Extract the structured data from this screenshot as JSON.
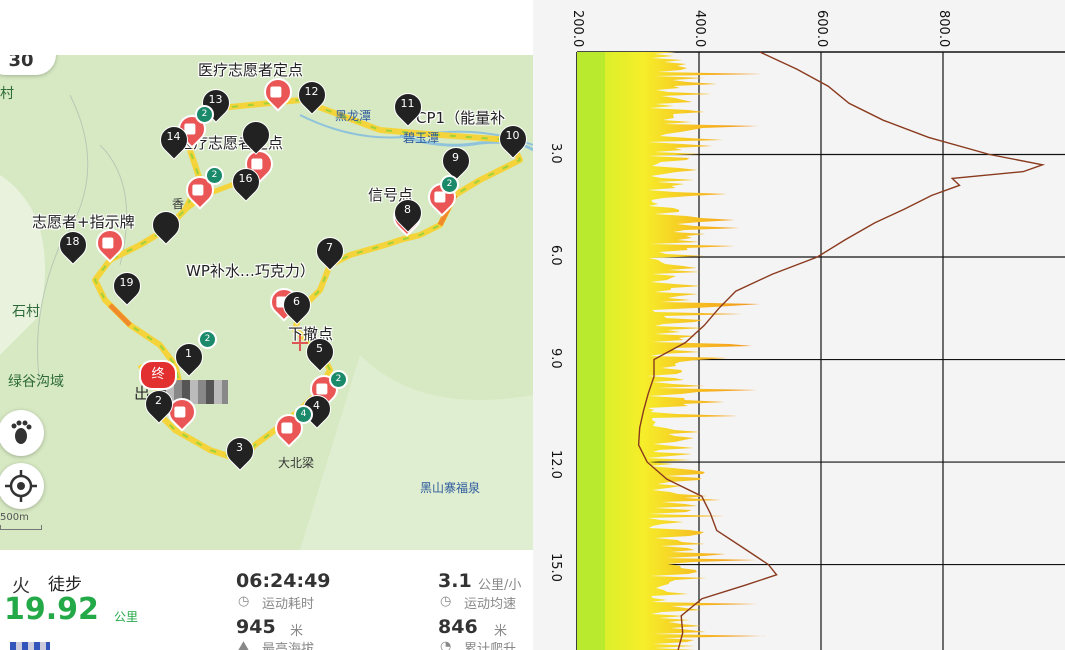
{
  "map": {
    "labels": {
      "medical_point_top": "医疗志愿者定点",
      "medical_point_mid": "医疗志愿者定点",
      "cp1": "CP1（能量补",
      "signal": "信号点",
      "volunteer_sign": "志愿者+指示牌",
      "wp_supply": "WP补水…巧克力）",
      "retreat": "下撤点"
    },
    "poi": {
      "pool": "黑龙潭",
      "jade_pool": "碧玉潭",
      "village_shi": "石村",
      "village_cun": "村",
      "green_valley": "绿谷沟域",
      "dabeiliang": "大北梁",
      "temple": "黑山寨福泉",
      "xiang": "香",
      "chu": "出"
    },
    "markers": [
      "13",
      "12",
      "11",
      "10",
      "9",
      "8",
      "7",
      "6",
      "5",
      "4",
      "3",
      "2",
      "1",
      "16",
      "18",
      "19",
      "14",
      "15",
      "17"
    ],
    "end_label": "终",
    "badge_2": "2",
    "badge_4": "4",
    "scale": "500m",
    "logo": "30"
  },
  "stats": {
    "activity": "徒步",
    "distance": "19.92",
    "distance_unit": "公里",
    "duration": "06:24:49",
    "duration_label": "运动耗时",
    "pace": "3.1",
    "pace_unit": "公里/小",
    "pace_label": "运动均速",
    "max_alt": "945",
    "max_alt_unit": "米",
    "max_alt_label": "最高海拔",
    "climb": "846",
    "climb_unit": "米",
    "climb_label": "累计爬升"
  },
  "chart_data": {
    "type": "area",
    "x_axis": {
      "ticks": [
        "200.0",
        "400.0",
        "600.0",
        "800.0"
      ],
      "range": [
        200,
        1000
      ]
    },
    "y_axis": {
      "ticks": [
        "3.0",
        "6.0",
        "9.0",
        "12.0",
        "15.0"
      ],
      "range": [
        0,
        17.5
      ],
      "ylabel": ""
    },
    "series": [
      {
        "name": "",
        "points": [
          [
            0,
            500
          ],
          [
            0.5,
            560
          ],
          [
            1,
            610
          ],
          [
            1.5,
            650
          ],
          [
            2,
            700
          ],
          [
            2.5,
            780
          ],
          [
            3,
            880
          ],
          [
            3.3,
            960
          ],
          [
            3.5,
            930
          ],
          [
            3.7,
            820
          ],
          [
            3.9,
            830
          ],
          [
            4.2,
            780
          ],
          [
            4.6,
            740
          ],
          [
            5,
            690
          ],
          [
            5.5,
            640
          ],
          [
            6,
            590
          ],
          [
            6.5,
            520
          ],
          [
            7,
            460
          ],
          [
            7.5,
            430
          ],
          [
            8,
            410
          ],
          [
            8.5,
            380
          ],
          [
            9,
            330
          ],
          [
            9.5,
            330
          ],
          [
            10,
            320
          ],
          [
            10.5,
            310
          ],
          [
            11,
            305
          ],
          [
            11.5,
            300
          ],
          [
            12,
            320
          ],
          [
            12.5,
            350
          ],
          [
            13,
            400
          ],
          [
            13.5,
            420
          ],
          [
            14,
            430
          ],
          [
            14.5,
            470
          ],
          [
            15,
            510
          ],
          [
            15.3,
            530
          ],
          [
            15.6,
            480
          ],
          [
            16,
            400
          ],
          [
            16.5,
            375
          ],
          [
            17,
            370
          ],
          [
            17.5,
            370
          ]
        ]
      }
    ],
    "grid": true
  }
}
